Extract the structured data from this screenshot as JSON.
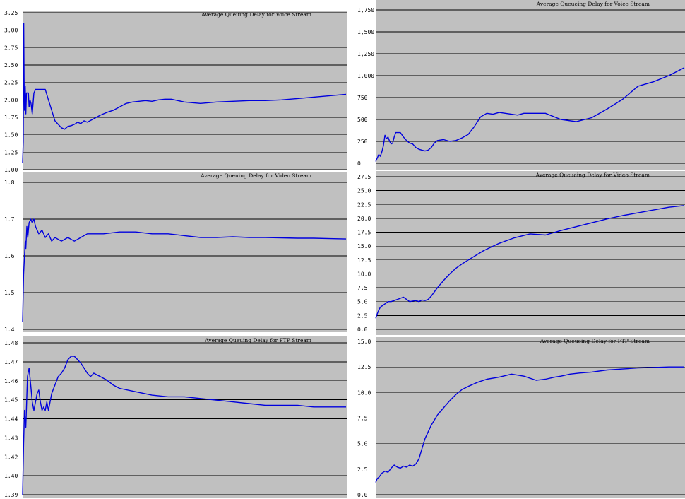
{
  "chart_data": [
    {
      "type": "line",
      "title": "Average Queuing Delay for Voice Stream",
      "xlabel": "",
      "ylabel": "",
      "ylim": [
        1.0,
        3.25
      ],
      "yticks": [
        "3.25",
        "3.00",
        "2.75",
        "2.50",
        "2.25",
        "2.00",
        "1.75",
        "1.50",
        "1.25",
        "1.00"
      ],
      "grid": true,
      "series": [
        {
          "color": "#0000dd",
          "x": [
            0,
            0.2,
            0.35,
            0.45,
            0.6,
            0.8,
            1,
            1.2,
            1.5,
            1.8,
            2,
            2.3,
            2.6,
            3,
            3.5,
            4,
            4.3,
            4.6,
            5,
            5.5,
            6,
            6.5,
            7,
            8,
            9,
            10,
            11,
            12,
            13,
            14,
            15,
            16,
            17,
            18,
            19,
            20,
            22,
            24,
            26,
            28,
            30,
            32,
            34,
            36,
            38,
            40,
            42,
            44,
            46,
            48,
            50,
            55,
            60,
            65,
            70,
            75,
            80,
            85,
            90,
            95,
            100
          ],
          "y": [
            1.1,
            1.4,
            3.1,
            2.3,
            1.85,
            2.2,
            1.8,
            2.1,
            2.1,
            2.1,
            1.9,
            2.0,
            1.95,
            1.8,
            2.1,
            2.15,
            2.15,
            2.15,
            2.15,
            2.15,
            2.15,
            2.15,
            2.15,
            2.0,
            1.85,
            1.7,
            1.65,
            1.6,
            1.58,
            1.62,
            1.63,
            1.65,
            1.68,
            1.66,
            1.7,
            1.68,
            1.73,
            1.78,
            1.82,
            1.85,
            1.9,
            1.95,
            1.97,
            1.98,
            1.99,
            1.98,
            2.0,
            2.01,
            2.01,
            1.99,
            1.97,
            1.95,
            1.97,
            1.98,
            1.99,
            1.99,
            2.0,
            2.02,
            2.04,
            2.06,
            2.08
          ]
        }
      ]
    },
    {
      "type": "line",
      "title": "Average Queuing Delay for Video Stream",
      "xlabel": "",
      "ylabel": "",
      "ylim": [
        1.4,
        1.8
      ],
      "yticks": [
        "1.8",
        "1.7",
        "1.6",
        "1.5",
        "1.4"
      ],
      "grid": true,
      "series": [
        {
          "color": "#0000dd",
          "x": [
            0,
            0.3,
            0.6,
            0.8,
            1,
            1.3,
            1.6,
            2,
            2.5,
            3,
            3.5,
            4,
            5,
            6,
            7,
            8,
            9,
            10,
            12,
            14,
            16,
            18,
            20,
            25,
            30,
            35,
            40,
            45,
            50,
            55,
            60,
            65,
            70,
            75,
            80,
            85,
            90,
            95,
            100
          ],
          "y": [
            1.42,
            1.55,
            1.6,
            1.64,
            1.62,
            1.68,
            1.65,
            1.69,
            1.7,
            1.69,
            1.7,
            1.68,
            1.66,
            1.67,
            1.65,
            1.66,
            1.64,
            1.65,
            1.64,
            1.65,
            1.64,
            1.65,
            1.66,
            1.66,
            1.665,
            1.665,
            1.66,
            1.66,
            1.655,
            1.65,
            1.65,
            1.652,
            1.65,
            1.65,
            1.649,
            1.648,
            1.648,
            1.647,
            1.646
          ]
        }
      ]
    },
    {
      "type": "line",
      "title": "Average Queuing Delay for FTP Stream",
      "xlabel": "",
      "ylabel": "",
      "ylim": [
        1.39,
        1.48
      ],
      "yticks": [
        "1.48",
        "1.47",
        "1.46",
        "1.45",
        "1.44",
        "1.43",
        "1.42",
        "1.40",
        "1.39"
      ],
      "grid": true,
      "series": [
        {
          "color": "#0000dd",
          "x": [
            0,
            0.3,
            0.6,
            1,
            1.5,
            2,
            2.5,
            3,
            3.5,
            4,
            4.5,
            5,
            5.5,
            6,
            6.5,
            7,
            7.5,
            8,
            9,
            10,
            11,
            12,
            13,
            14,
            15,
            16,
            17,
            18,
            19,
            20,
            21,
            22,
            24,
            26,
            28,
            30,
            35,
            40,
            45,
            50,
            55,
            60,
            65,
            70,
            75,
            80,
            85,
            90,
            95,
            100
          ],
          "y": [
            1.39,
            1.42,
            1.44,
            1.43,
            1.46,
            1.465,
            1.455,
            1.445,
            1.44,
            1.445,
            1.45,
            1.452,
            1.445,
            1.44,
            1.442,
            1.44,
            1.445,
            1.44,
            1.45,
            1.455,
            1.46,
            1.462,
            1.465,
            1.47,
            1.472,
            1.472,
            1.47,
            1.468,
            1.465,
            1.462,
            1.46,
            1.462,
            1.46,
            1.458,
            1.455,
            1.453,
            1.451,
            1.449,
            1.448,
            1.448,
            1.447,
            1.446,
            1.445,
            1.444,
            1.443,
            1.443,
            1.443,
            1.442,
            1.442,
            1.442
          ]
        }
      ]
    },
    {
      "type": "line",
      "title": "Average Queueing Delay for Voice Stream",
      "xlabel": "",
      "ylabel": "",
      "ylim": [
        0,
        1750
      ],
      "yticks": [
        "1,750",
        "1,500",
        "1,250",
        "1,000",
        "750",
        "500",
        "250",
        "0"
      ],
      "grid": true,
      "series": [
        {
          "color": "#0000dd",
          "x": [
            0,
            0.5,
            1,
            1.5,
            2,
            2.5,
            3,
            3.5,
            4,
            4.5,
            5,
            5.5,
            6,
            6.5,
            7,
            8,
            9,
            10,
            11,
            12,
            13,
            14,
            15,
            16,
            17,
            18,
            19,
            20,
            22,
            24,
            26,
            28,
            30,
            32,
            34,
            36,
            38,
            40,
            42,
            44,
            46,
            48,
            50,
            55,
            60,
            65,
            70,
            75,
            80,
            85,
            90,
            95,
            100
          ],
          "y": [
            20,
            60,
            100,
            80,
            130,
            200,
            320,
            280,
            300,
            250,
            220,
            230,
            300,
            350,
            350,
            350,
            300,
            260,
            230,
            220,
            180,
            160,
            150,
            140,
            150,
            180,
            230,
            260,
            270,
            250,
            260,
            290,
            330,
            420,
            530,
            570,
            560,
            580,
            570,
            560,
            550,
            570,
            570,
            570,
            500,
            475,
            520,
            620,
            730,
            880,
            930,
            1000,
            1090
          ]
        }
      ]
    },
    {
      "type": "line",
      "title": "Average Queueing Delay for Video Stream",
      "xlabel": "",
      "ylabel": "",
      "ylim": [
        0,
        27.5
      ],
      "yticks": [
        "27.5",
        "25.0",
        "22.5",
        "20.0",
        "17.5",
        "15.0",
        "12.5",
        "10.0",
        "7.5",
        "5.0",
        "2.5",
        "0.0"
      ],
      "grid": true,
      "series": [
        {
          "color": "#0000dd",
          "x": [
            0,
            0.5,
            1,
            1.5,
            2,
            3,
            4,
            5,
            6,
            7,
            8,
            9,
            10,
            11,
            12,
            13,
            14,
            15,
            16,
            17,
            18,
            20,
            22,
            24,
            26,
            28,
            30,
            35,
            40,
            45,
            50,
            55,
            60,
            65,
            70,
            75,
            80,
            85,
            90,
            95,
            100
          ],
          "y": [
            2.0,
            2.8,
            3.5,
            4.0,
            4.2,
            4.6,
            5.0,
            5.0,
            5.2,
            5.4,
            5.6,
            5.8,
            5.4,
            5.0,
            5.1,
            5.2,
            5.0,
            5.3,
            5.2,
            5.4,
            6.0,
            7.5,
            8.8,
            10.0,
            11.0,
            11.8,
            12.5,
            14.2,
            15.5,
            16.5,
            17.2,
            17.0,
            17.8,
            18.5,
            19.2,
            19.9,
            20.5,
            21.0,
            21.5,
            22.0,
            22.3
          ]
        }
      ]
    },
    {
      "type": "line",
      "title": "Average Queueing Delay for FTP Stream",
      "xlabel": "",
      "ylabel": "",
      "ylim": [
        0,
        15.0
      ],
      "yticks": [
        "15.0",
        "12.5",
        "10.0",
        "7.5",
        "5.0",
        "2.5",
        "0.0"
      ],
      "grid": true,
      "series": [
        {
          "color": "#0000dd",
          "x": [
            0,
            0.5,
            1,
            1.5,
            2,
            3,
            4,
            5,
            6,
            7,
            8,
            9,
            10,
            11,
            12,
            13,
            14,
            15,
            16,
            18,
            20,
            22,
            24,
            26,
            28,
            30,
            33,
            36,
            40,
            44,
            48,
            52,
            55,
            58,
            60,
            63,
            66,
            70,
            75,
            80,
            85,
            90,
            95,
            100
          ],
          "y": [
            1.2,
            1.6,
            1.7,
            1.9,
            2.1,
            2.3,
            2.2,
            2.6,
            2.9,
            2.7,
            2.6,
            2.8,
            2.7,
            2.9,
            2.8,
            3.0,
            3.5,
            4.5,
            5.5,
            6.8,
            7.8,
            8.5,
            9.2,
            9.8,
            10.3,
            10.6,
            11.0,
            11.3,
            11.5,
            11.8,
            11.6,
            11.2,
            11.3,
            11.5,
            11.6,
            11.8,
            11.9,
            12.0,
            12.2,
            12.3,
            12.4,
            12.45,
            12.5,
            12.5
          ]
        }
      ]
    }
  ]
}
